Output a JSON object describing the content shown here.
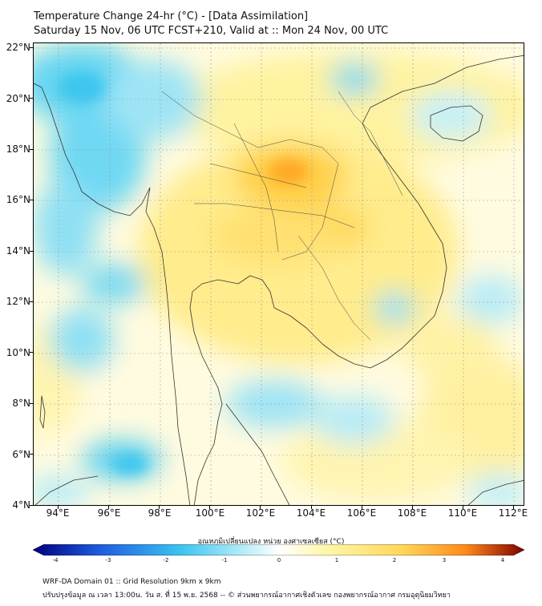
{
  "title": {
    "line1": "Temperature Change 24-hr (°C) - [Data Assimilation]",
    "line2": "Saturday 15 Nov, 06 UTC FCST+210, Valid at :: Mon 24 Nov, 00 UTC"
  },
  "map": {
    "lat_labels": [
      "22°N",
      "20°N",
      "18°N",
      "16°N",
      "14°N",
      "12°N",
      "10°N",
      "8°N",
      "6°N",
      "4°N"
    ],
    "lon_labels": [
      "94°E",
      "96°E",
      "98°E",
      "100°E",
      "102°E",
      "104°E",
      "106°E",
      "108°E",
      "110°E",
      "112°E"
    ],
    "extent": {
      "lon_min": 93,
      "lon_max": 112.5,
      "lat_min": 4,
      "lat_max": 22.2
    },
    "field": "24-hr temperature change",
    "unit": "°C"
  },
  "colorbar": {
    "title": "อุณหภูมิเปลี่ยนแปลง หน่วย องศาเซลเซียส (°C)",
    "min": -4,
    "max": 4,
    "tick_labels": [
      "-4",
      "-3",
      "-2",
      "-1",
      "0",
      "1",
      "2",
      "3",
      "4"
    ],
    "colors": {
      "cold_extreme": "#00007f",
      "cold": "#1f5fe0",
      "cool": "#3cc3ef",
      "slightly_cool": "#aeeaf7",
      "neutral": "#ffffff",
      "slightly_warm": "#fff6a8",
      "warm": "#ffd75a",
      "hot": "#ff8a1a",
      "hot_extreme": "#7f0000"
    }
  },
  "footer": {
    "line1": "WRF-DA Domain 01 :: Grid Resolution 9km x 9km",
    "line2": "ปรับปรุงข้อมูล ณ เวลา 13:00น. วัน ส. ที่ 15 พ.ย. 2568 -- © ส่วนพยากรณ์อากาศเชิงตัวเลข กองพยากรณ์อากาศ กรมอุตุนิยมวิทยา"
  }
}
